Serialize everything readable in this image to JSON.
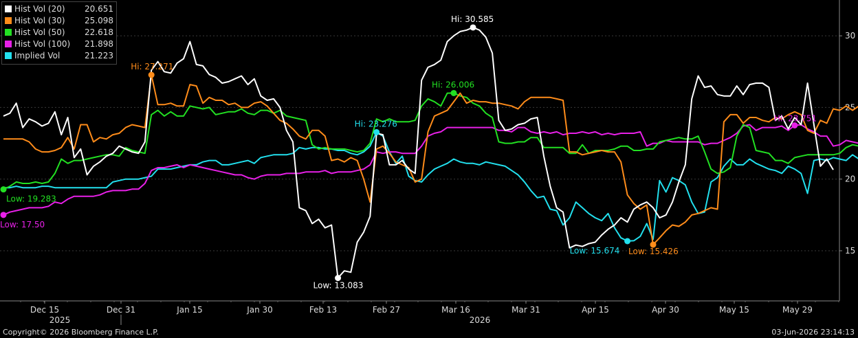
{
  "chart_data": {
    "type": "line",
    "ylim": [
      11.5,
      32.5
    ],
    "y_ticks": [
      15,
      20,
      25,
      30
    ],
    "x_axis": {
      "ticks": [
        "Dec 15",
        "Dec 31",
        "Jan 15",
        "Jan 30",
        "Feb 13",
        "Feb 27",
        "Mar 16",
        "Mar 31",
        "Apr 15",
        "Apr 30",
        "May 15",
        "May 29"
      ],
      "years": [
        "2025",
        "2026"
      ]
    },
    "series": [
      {
        "name": "Hist Vol (20)",
        "last": "20.651",
        "color": "#ffffff",
        "values": [
          24.4,
          24.6,
          25.3,
          23.6,
          24.2,
          24.0,
          23.7,
          23.9,
          24.7,
          23.1,
          24.3,
          21.5,
          22.1,
          20.3,
          20.9,
          21.2,
          21.6,
          21.8,
          22.3,
          22.1,
          21.9,
          21.8,
          22.6,
          27.6,
          28.2,
          27.5,
          27.4,
          28.1,
          28.4,
          29.6,
          28.0,
          27.9,
          27.3,
          27.1,
          26.7,
          26.8,
          27.0,
          27.2,
          26.6,
          27.0,
          25.8,
          25.5,
          25.6,
          25.0,
          23.4,
          22.6,
          18.0,
          17.8,
          16.9,
          17.2,
          16.6,
          16.8,
          13.1,
          13.6,
          13.5,
          15.6,
          16.3,
          17.4,
          23.2,
          23.1,
          21.0,
          21.0,
          21.3,
          20.7,
          20.4,
          26.9,
          27.8,
          28.0,
          28.3,
          29.6,
          30.0,
          30.3,
          30.4,
          30.585,
          30.4,
          29.9,
          28.8,
          24.1,
          23.4,
          23.5,
          23.8,
          23.9,
          24.2,
          24.3,
          21.6,
          19.5,
          18.0,
          17.7,
          15.2,
          15.4,
          15.3,
          15.5,
          15.6,
          16.1,
          16.5,
          16.8,
          17.3,
          17.0,
          17.9,
          18.2,
          18.4,
          18.0,
          17.3,
          17.5,
          18.4,
          19.8,
          21.0,
          25.6,
          27.2,
          26.4,
          26.5,
          25.9,
          25.8,
          25.8,
          26.5,
          25.9,
          26.6,
          26.7,
          26.7,
          26.4,
          24.1,
          24.4,
          23.5,
          24.3,
          23.8,
          26.7,
          23.8,
          20.9,
          21.4,
          20.651
        ]
      },
      {
        "name": "Hist Vol (30)",
        "last": "25.098",
        "color": "#ff8c1a",
        "values": [
          22.8,
          22.8,
          22.8,
          22.8,
          22.6,
          22.1,
          21.9,
          21.9,
          22.0,
          22.2,
          22.9,
          22.1,
          23.8,
          23.8,
          22.6,
          22.9,
          22.8,
          23.1,
          23.2,
          23.6,
          23.8,
          23.7,
          23.6,
          27.271,
          25.2,
          25.2,
          25.3,
          25.1,
          25.1,
          26.6,
          26.5,
          25.3,
          25.7,
          25.5,
          25.5,
          25.2,
          25.3,
          25.0,
          25.0,
          25.3,
          25.4,
          25.1,
          24.6,
          24.1,
          23.9,
          23.5,
          23.0,
          22.8,
          23.4,
          23.4,
          23.0,
          21.3,
          21.4,
          21.2,
          21.5,
          21.3,
          20.0,
          18.4,
          22.1,
          22.3,
          21.8,
          21.2,
          21.0,
          20.8,
          19.8,
          20.0,
          23.3,
          24.4,
          24.6,
          24.8,
          25.4,
          26.0,
          25.3,
          25.5,
          25.4,
          25.4,
          25.3,
          25.3,
          25.2,
          25.1,
          24.9,
          25.4,
          25.7,
          25.7,
          25.7,
          25.7,
          25.6,
          25.5,
          21.9,
          21.9,
          21.7,
          21.8,
          21.9,
          22.0,
          21.9,
          21.9,
          21.2,
          18.9,
          18.3,
          17.9,
          18.2,
          15.426,
          15.9,
          16.4,
          16.8,
          16.7,
          17.0,
          17.5,
          17.6,
          17.8,
          18.0,
          17.9,
          24.0,
          24.5,
          24.5,
          23.9,
          24.3,
          24.3,
          24.1,
          24.0,
          24.3,
          24.2,
          24.5,
          24.7,
          24.5,
          23.4,
          23.2,
          24.1,
          23.9,
          24.9,
          24.8,
          25.1,
          24.8,
          25.1,
          25.098
        ]
      },
      {
        "name": "Hist Vol (50)",
        "last": "22.618",
        "color": "#22e022",
        "values": [
          19.283,
          19.5,
          19.8,
          19.7,
          19.7,
          19.8,
          19.7,
          19.8,
          20.4,
          21.4,
          21.1,
          21.3,
          21.3,
          21.4,
          21.5,
          21.6,
          21.7,
          21.7,
          21.6,
          22.2,
          22.0,
          21.9,
          21.8,
          24.5,
          24.8,
          24.4,
          24.7,
          24.4,
          24.4,
          25.1,
          25.0,
          24.9,
          25.0,
          24.5,
          24.6,
          24.7,
          24.7,
          24.9,
          24.6,
          24.5,
          24.8,
          24.8,
          24.6,
          24.8,
          24.4,
          24.3,
          24.2,
          24.1,
          22.4,
          22.1,
          22.2,
          22.1,
          22.1,
          22.1,
          22.0,
          21.9,
          22.0,
          22.5,
          24.2,
          24.0,
          24.2,
          24.0,
          24.0,
          24.0,
          24.1,
          25.1,
          25.6,
          25.4,
          25.1,
          26.0,
          26.006,
          25.8,
          25.7,
          25.3,
          25.1,
          24.6,
          24.3,
          22.6,
          22.5,
          22.5,
          22.6,
          22.6,
          22.9,
          22.9,
          22.2,
          22.2,
          22.2,
          22.2,
          21.8,
          21.8,
          22.4,
          21.8,
          22.0,
          22.0,
          22.0,
          22.1,
          22.3,
          22.3,
          22.0,
          22.0,
          22.1,
          22.1,
          22.6,
          22.7,
          22.8,
          22.9,
          22.8,
          22.8,
          23.0,
          21.9,
          20.7,
          20.4,
          20.5,
          20.8,
          23.0,
          23.8,
          23.6,
          22.0,
          21.9,
          21.8,
          21.3,
          21.3,
          21.1,
          21.5,
          21.6,
          21.7,
          21.7,
          21.7,
          21.7,
          21.7,
          21.8,
          22.2,
          22.4,
          22.3,
          22.5,
          22.6,
          22.618
        ]
      },
      {
        "name": "Hist Vol (100)",
        "last": "21.898",
        "color": "#e820e8",
        "values": [
          17.5,
          17.7,
          17.8,
          17.9,
          18.0,
          18.0,
          18.0,
          18.1,
          18.4,
          18.3,
          18.6,
          18.8,
          18.8,
          18.8,
          18.8,
          18.9,
          19.1,
          19.2,
          19.2,
          19.2,
          19.3,
          19.3,
          19.7,
          20.6,
          20.8,
          20.8,
          20.9,
          21.0,
          20.8,
          21.0,
          20.9,
          20.8,
          20.7,
          20.6,
          20.5,
          20.4,
          20.3,
          20.3,
          20.1,
          20.0,
          20.2,
          20.3,
          20.3,
          20.3,
          20.4,
          20.4,
          20.4,
          20.5,
          20.5,
          20.5,
          20.6,
          20.4,
          20.5,
          20.5,
          20.5,
          20.6,
          20.7,
          21.0,
          21.9,
          21.8,
          21.9,
          21.9,
          21.8,
          21.8,
          21.8,
          22.3,
          23.0,
          23.2,
          23.3,
          23.6,
          23.6,
          23.6,
          23.6,
          23.6,
          23.6,
          23.6,
          23.6,
          23.4,
          23.4,
          23.3,
          23.6,
          23.6,
          23.3,
          23.2,
          23.3,
          23.2,
          23.3,
          23.1,
          23.2,
          23.2,
          23.3,
          23.2,
          23.3,
          23.1,
          23.2,
          23.1,
          23.2,
          23.2,
          23.2,
          23.3,
          22.3,
          22.5,
          22.5,
          22.7,
          22.6,
          22.6,
          22.6,
          22.6,
          22.6,
          22.4,
          22.5,
          22.5,
          22.7,
          22.9,
          23.2,
          23.7,
          23.8,
          23.4,
          23.6,
          23.6,
          23.6,
          23.7,
          23.4,
          23.751,
          23.8,
          23.5,
          23.3,
          23.0,
          23.0,
          22.3,
          22.4,
          22.7,
          22.6,
          22.5,
          22.4,
          21.898
        ]
      },
      {
        "name": "Implied Vol",
        "last": "21.223",
        "color": "#22e0ee",
        "values": [
          19.4,
          19.4,
          19.5,
          19.4,
          19.4,
          19.4,
          19.5,
          19.5,
          19.4,
          19.4,
          19.4,
          19.4,
          19.4,
          19.4,
          19.4,
          19.4,
          19.4,
          19.8,
          19.9,
          20.0,
          20.0,
          20.0,
          20.1,
          20.2,
          20.7,
          20.7,
          20.7,
          20.8,
          20.9,
          21.0,
          21.0,
          21.2,
          21.3,
          21.3,
          21.0,
          21.0,
          21.1,
          21.2,
          21.3,
          21.1,
          21.5,
          21.6,
          21.7,
          21.7,
          21.7,
          21.8,
          22.2,
          22.1,
          22.2,
          22.2,
          22.1,
          22.1,
          22.0,
          22.0,
          21.8,
          21.7,
          21.9,
          22.3,
          23.276,
          23.0,
          21.9,
          21.1,
          21.6,
          20.2,
          19.9,
          19.8,
          20.3,
          20.7,
          20.9,
          21.1,
          21.4,
          21.2,
          21.1,
          21.1,
          21.0,
          21.2,
          21.1,
          21.0,
          20.9,
          20.6,
          20.3,
          19.8,
          19.2,
          18.7,
          18.8,
          17.9,
          17.8,
          16.8,
          17.3,
          18.4,
          18.0,
          17.6,
          17.3,
          17.1,
          17.6,
          16.6,
          15.9,
          15.674,
          15.7,
          16.0,
          16.9,
          15.8,
          19.9,
          19.1,
          20.1,
          19.9,
          19.6,
          18.4,
          17.6,
          17.7,
          19.8,
          20.1,
          20.9,
          21.4,
          21.0,
          21.0,
          21.4,
          21.1,
          20.9,
          20.7,
          20.6,
          20.4,
          20.9,
          20.7,
          20.4,
          19.0,
          21.3,
          21.4,
          21.3,
          21.5,
          21.4,
          21.3,
          21.7,
          21.4,
          21.2,
          21.3,
          21.223
        ]
      }
    ],
    "annotations": [
      {
        "series": 0,
        "index": 73,
        "label": "Hi: 30.585",
        "color": "#ffffff"
      },
      {
        "series": 0,
        "index": 52,
        "label": "Low: 13.083",
        "color": "#ffffff"
      },
      {
        "series": 1,
        "index": 23,
        "label": "Hi: 27.271",
        "color": "#ff8c1a"
      },
      {
        "series": 1,
        "index": 101,
        "label": "Low: 15.426",
        "color": "#ff8c1a"
      },
      {
        "series": 2,
        "index": 70,
        "label": "Hi: 26.006",
        "color": "#22e022"
      },
      {
        "series": 2,
        "index": 0,
        "label": "Low: 19.283",
        "color": "#22e022"
      },
      {
        "series": 3,
        "index": 123,
        "label": "Hi: 23.751",
        "color": "#e820e8"
      },
      {
        "series": 3,
        "index": 0,
        "label": "Low: 17.50",
        "color": "#e820e8"
      },
      {
        "series": 4,
        "index": 58,
        "label": "Hi: 23.276",
        "color": "#22e0ee"
      },
      {
        "series": 4,
        "index": 97,
        "label": "Low: 15.674",
        "color": "#22e0ee"
      }
    ]
  },
  "footer": {
    "copyright": "Copyright© 2026 Bloomberg Finance L.P.",
    "timestamp": "03-Jun-2026 23:14:13"
  }
}
